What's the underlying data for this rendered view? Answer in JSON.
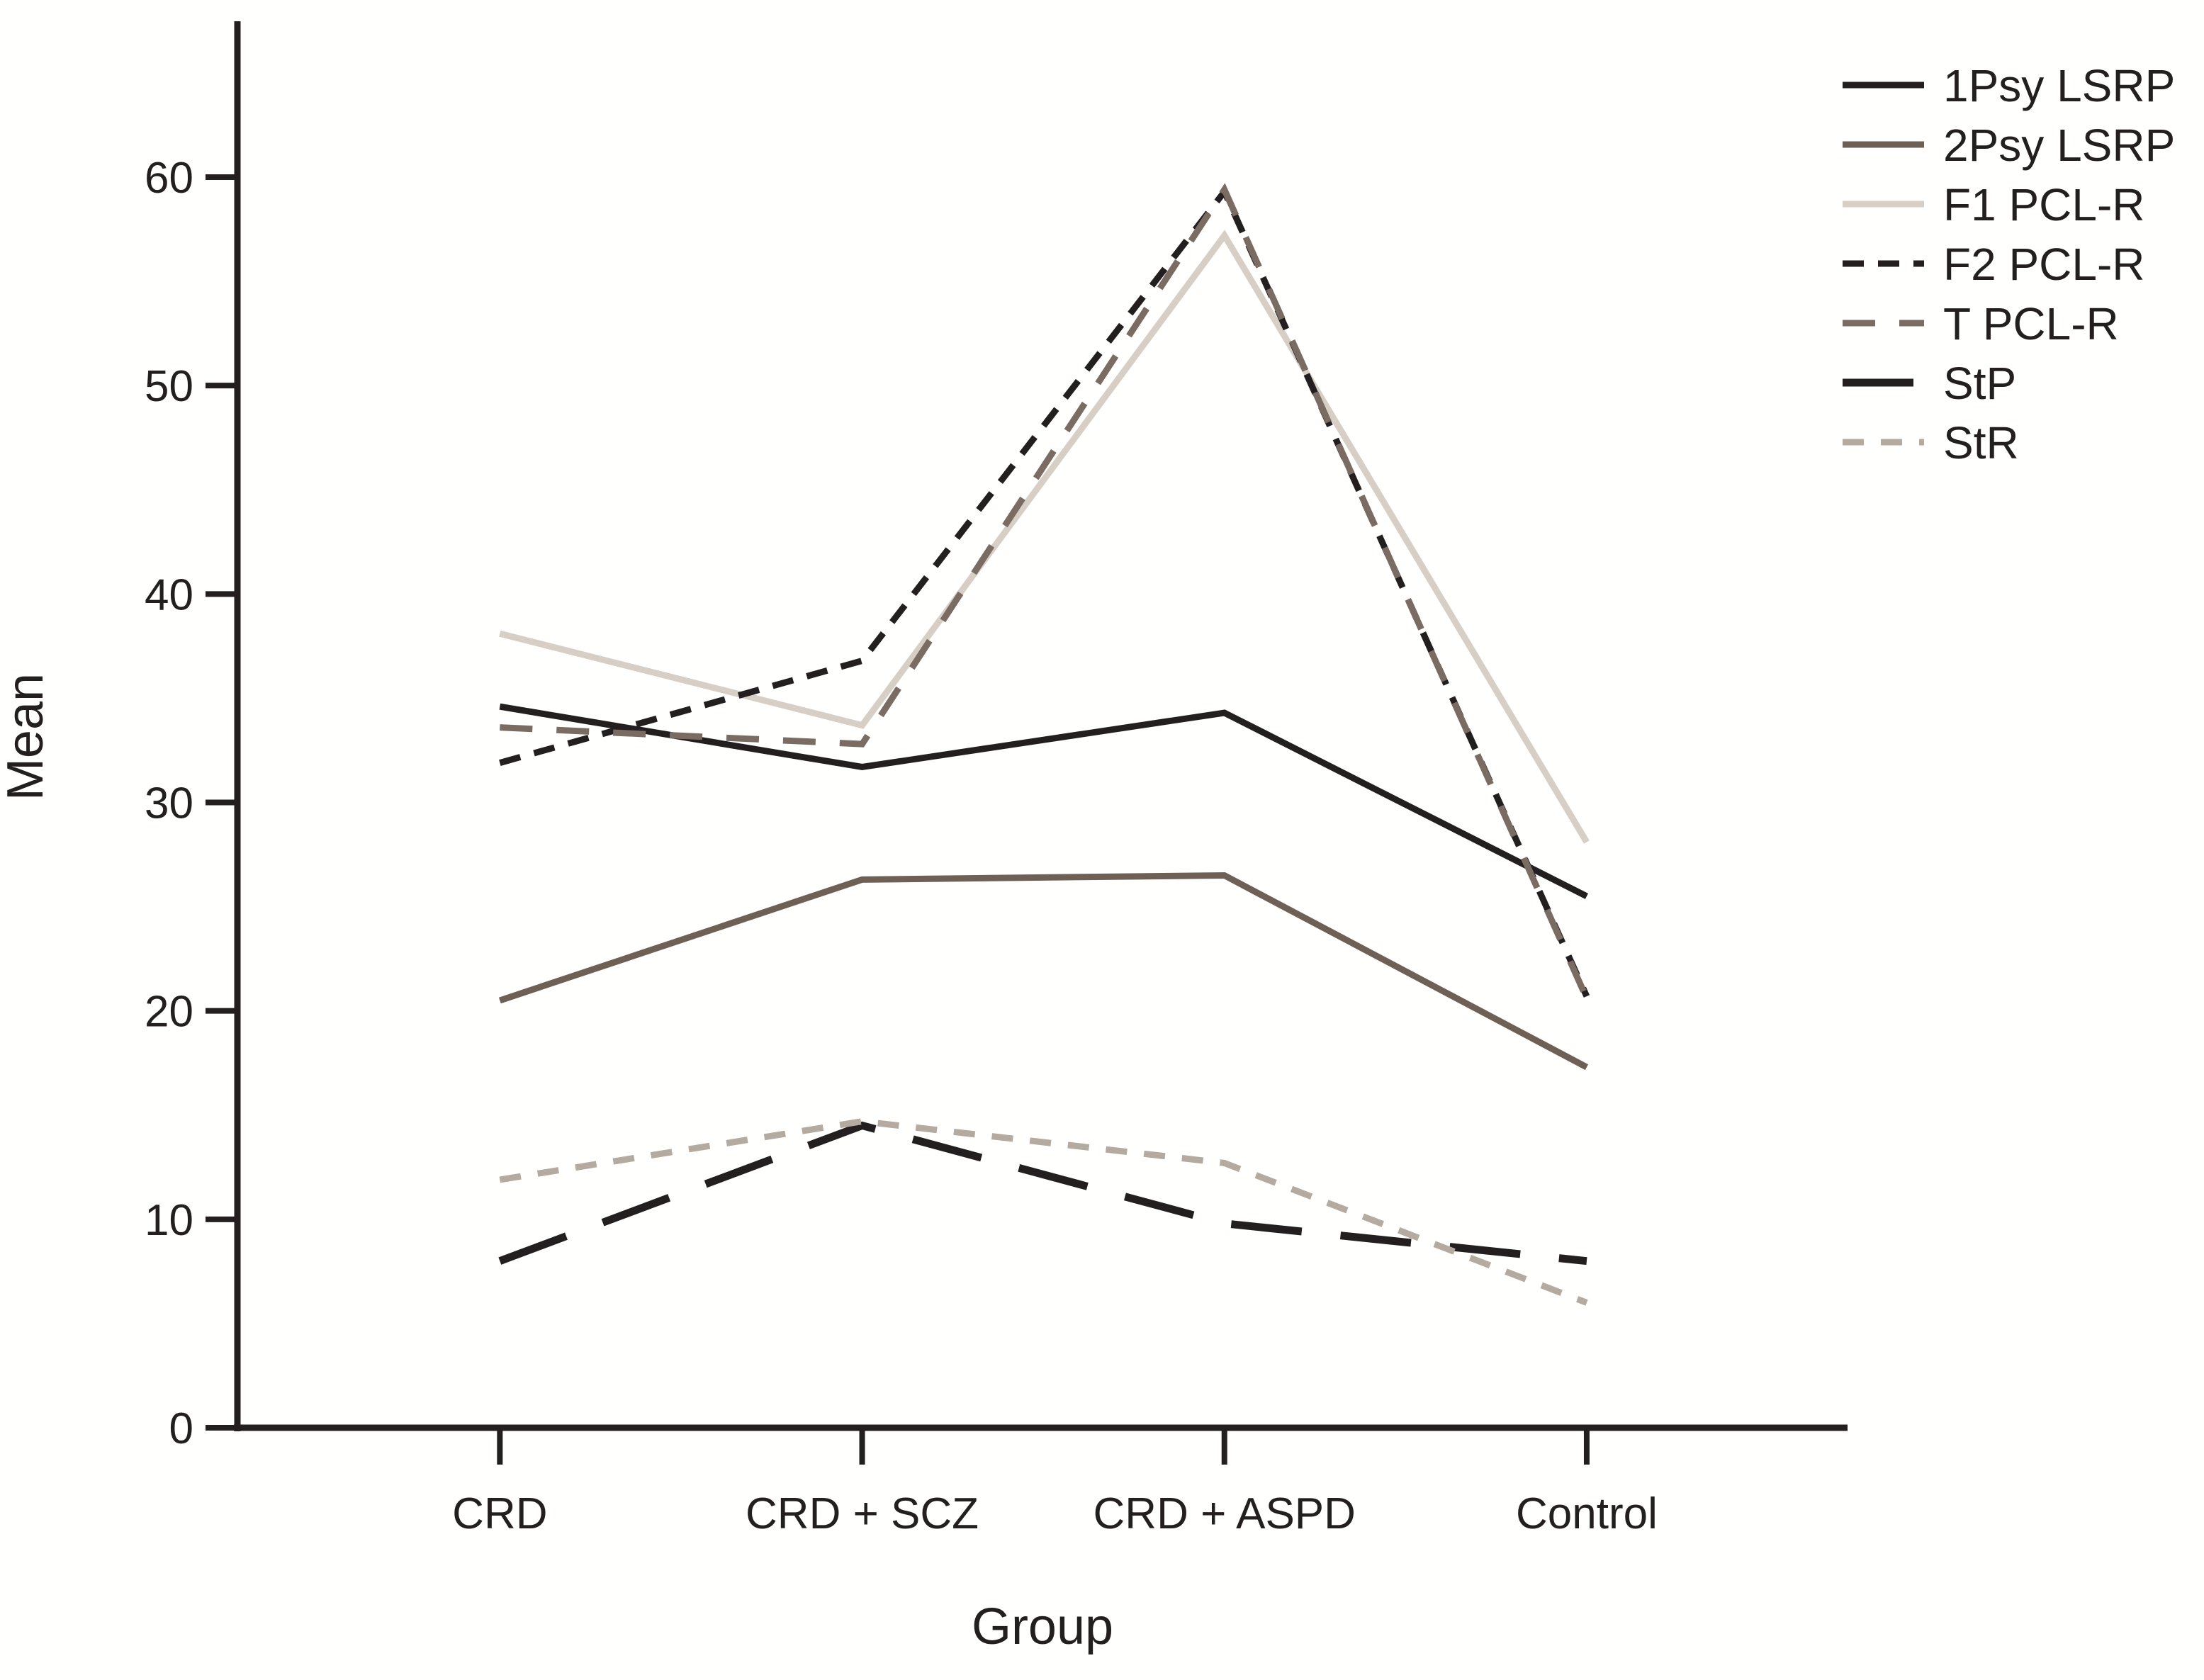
{
  "figure": {
    "background": "#ffffff"
  },
  "chart_data": {
    "type": "line",
    "title": "",
    "xlabel": "Group",
    "ylabel": "Mean",
    "categories": [
      "CRD",
      "CRD + SCZ",
      "CRD + ASPD",
      "Control"
    ],
    "yticks": [
      0,
      10,
      20,
      30,
      40,
      50,
      60
    ],
    "ylim": [
      0,
      67.5
    ],
    "grid": "off",
    "legend_position": "top-right",
    "axis_color": "#231f20",
    "series": [
      {
        "name": "1Psy LSRP",
        "color": "#231f20",
        "dash": "solid",
        "width": 9,
        "values": [
          34.6,
          31.7,
          34.3,
          25.5
        ]
      },
      {
        "name": "2Psy LSRP",
        "color": "#6f6056",
        "dash": "solid",
        "width": 9,
        "values": [
          20.5,
          26.3,
          26.5,
          17.3
        ]
      },
      {
        "name": "F1 PCL-R",
        "color": "#d7cec5",
        "dash": "solid",
        "width": 9,
        "values": [
          38.1,
          33.7,
          57.2,
          28.1
        ]
      },
      {
        "name": "F2 PCL-R",
        "color": "#231f20",
        "dash": "30 20",
        "width": 9,
        "values": [
          31.9,
          36.8,
          59.3,
          20.7
        ]
      },
      {
        "name": "T PCL-R",
        "color": "#7a6c63",
        "dash": "46 34",
        "width": 9,
        "values": [
          33.6,
          32.8,
          59.4,
          20.6
        ]
      },
      {
        "name": "StP",
        "color": "#231f20",
        "dash": "100 55",
        "width": 11,
        "values": [
          8.0,
          14.5,
          9.8,
          8.0
        ]
      },
      {
        "name": "StR",
        "color": "#b4aaa0",
        "dash": "30 24",
        "width": 9,
        "values": [
          11.9,
          14.7,
          12.7,
          6.0
        ]
      }
    ]
  }
}
